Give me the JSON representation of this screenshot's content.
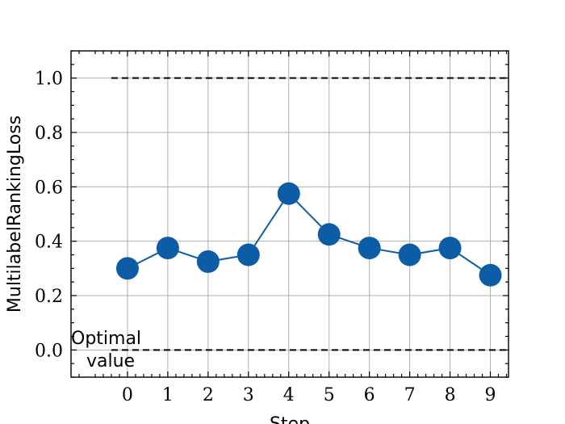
{
  "chart_data": {
    "type": "line",
    "title": "",
    "xlabel": "Step",
    "ylabel": "MultilabelRankingLoss",
    "x": [
      0,
      1,
      2,
      3,
      4,
      5,
      6,
      7,
      8,
      9
    ],
    "xticks": [
      "0",
      "1",
      "2",
      "3",
      "4",
      "5",
      "6",
      "7",
      "8",
      "9"
    ],
    "yticks": [
      "0.0",
      "0.2",
      "0.4",
      "0.6",
      "0.8",
      "1.0"
    ],
    "xlim": [
      -1.4,
      9.45
    ],
    "ylim": [
      -0.1,
      1.1
    ],
    "grid": true,
    "series": [
      {
        "values": [
          0.3,
          0.375,
          0.325,
          0.35,
          0.575,
          0.425,
          0.375,
          0.35,
          0.375,
          0.275
        ],
        "color": "#0c5da5"
      }
    ],
    "reference_lines": [
      {
        "y": 1.0,
        "x_range": [
          -0.4,
          9.45
        ]
      },
      {
        "y": 0.0,
        "x_range": [
          -0.4,
          9.45
        ]
      }
    ],
    "annotations": [
      {
        "text_line1": "Optimal",
        "text_line2": "value",
        "at_y": 0.0
      }
    ]
  }
}
